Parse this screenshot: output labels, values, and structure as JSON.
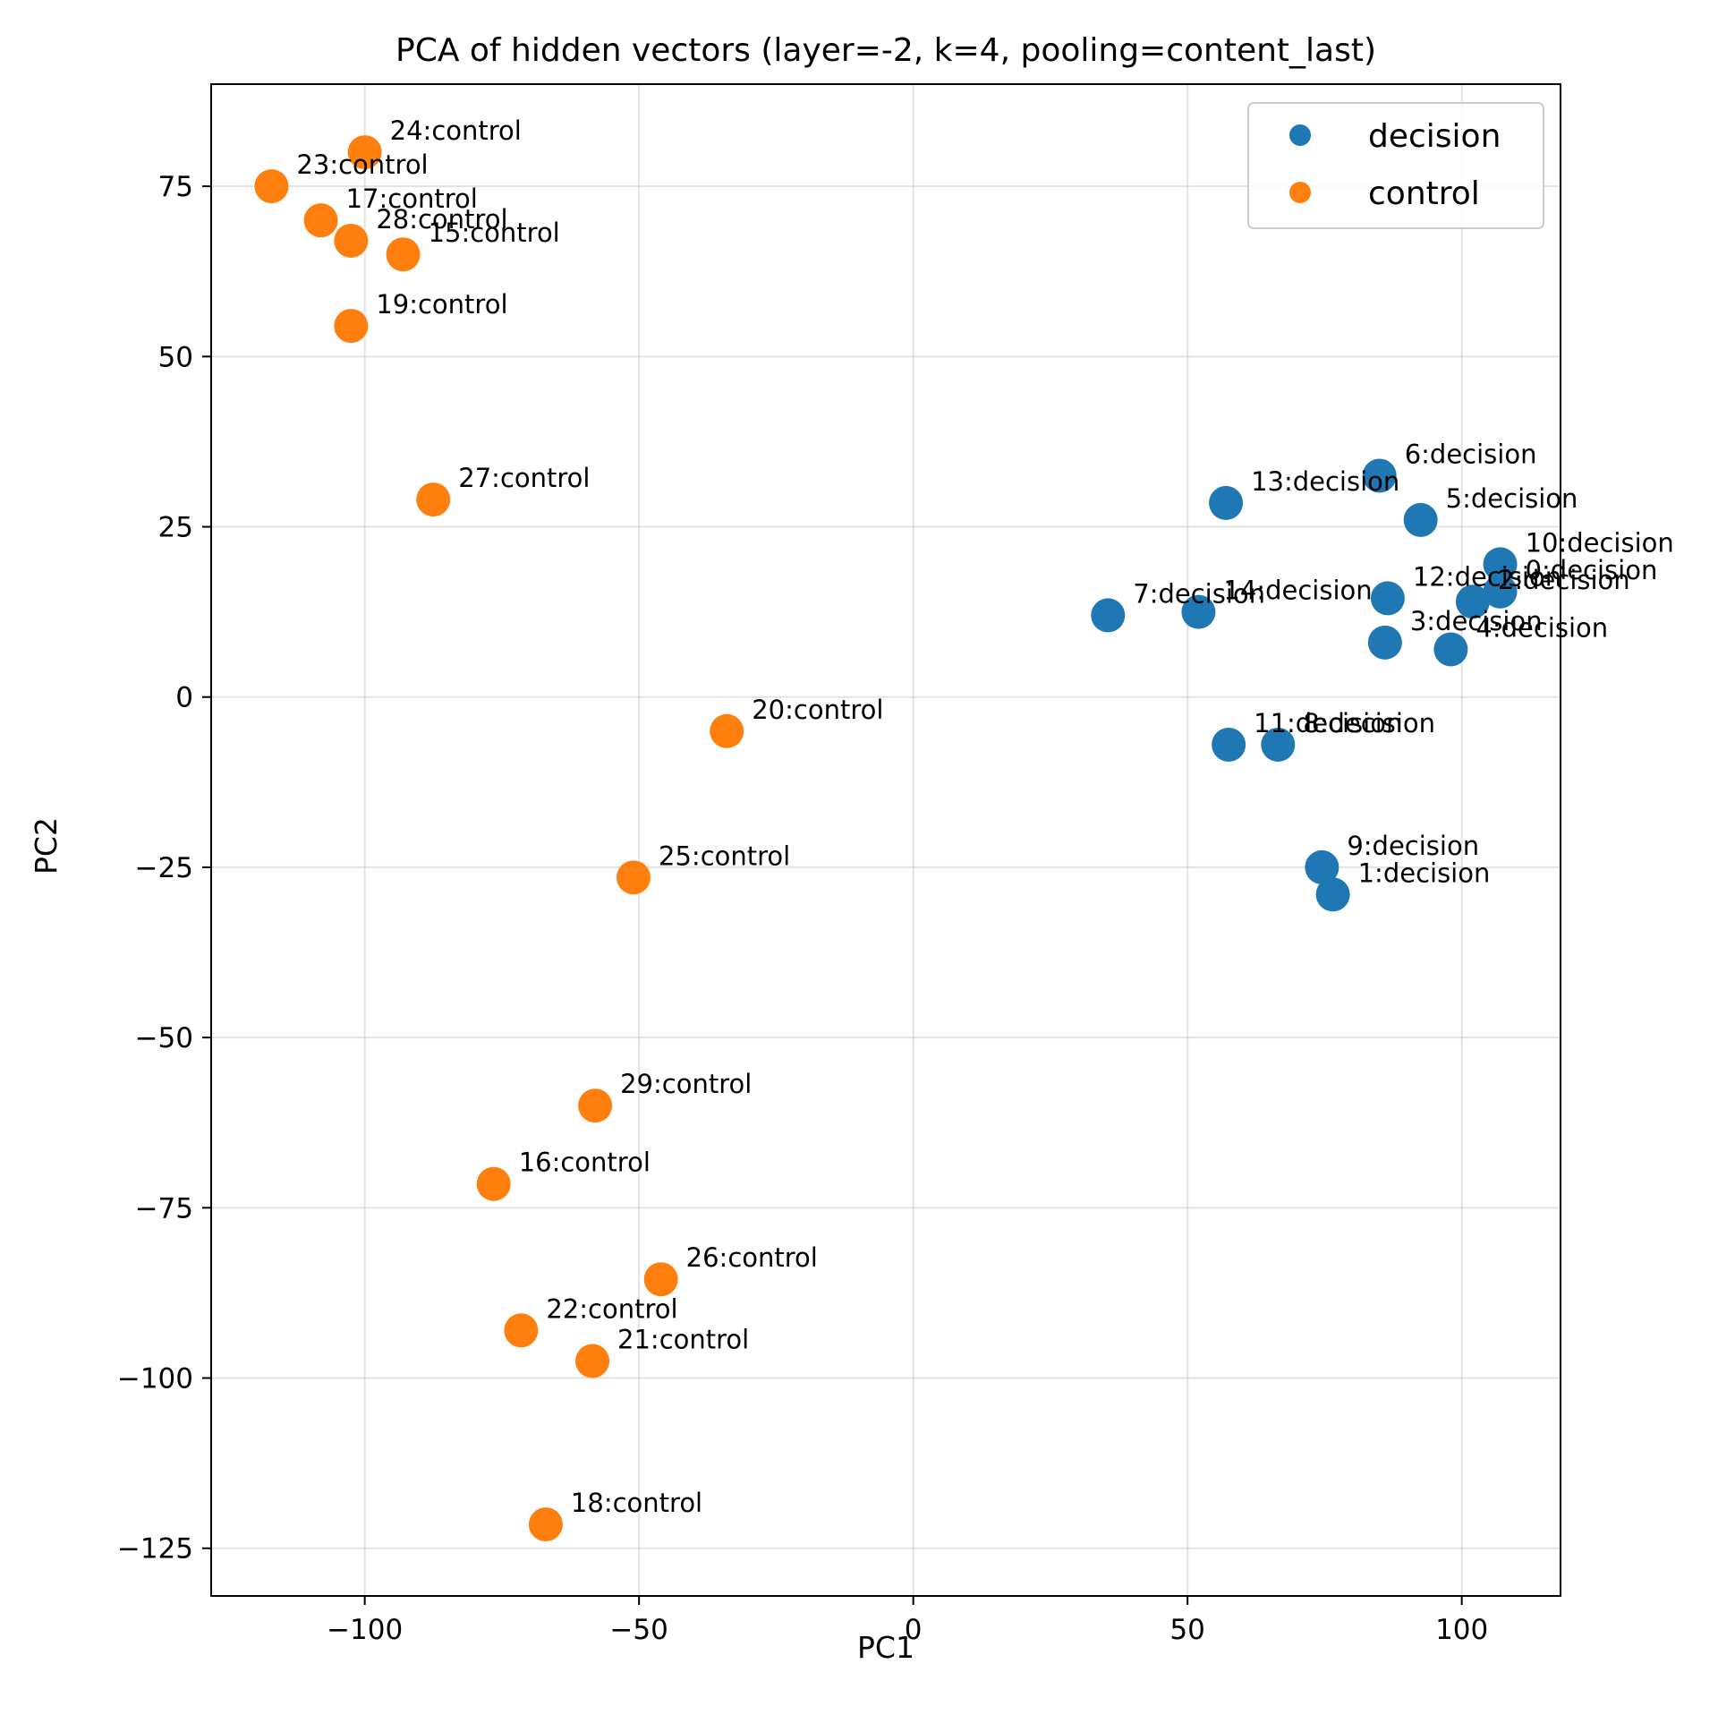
{
  "chart_data": {
    "type": "scatter",
    "title": "PCA of hidden vectors (layer=-2, k=4, pooling=content_last)",
    "xlabel": "PC1",
    "ylabel": "PC2",
    "xlim": [
      -128,
      118
    ],
    "ylim": [
      -132,
      90
    ],
    "xticks": [
      -100,
      -50,
      0,
      50,
      100
    ],
    "xtick_labels": [
      "−100",
      "−50",
      "0",
      "50",
      "100"
    ],
    "yticks": [
      75,
      50,
      25,
      0,
      -25,
      -50,
      -75,
      -100,
      -125
    ],
    "ytick_labels": [
      "75",
      "50",
      "25",
      "0",
      "−25",
      "−50",
      "−75",
      "−100",
      "−125"
    ],
    "grid": true,
    "legend_position": "top-right",
    "colors": {
      "decision": "#1f77b4",
      "control": "#ff7f0e"
    },
    "series": [
      {
        "name": "decision",
        "points": [
          {
            "x": 107,
            "y": 15.5,
            "label": "0:decision"
          },
          {
            "x": 76.5,
            "y": -29,
            "label": "1:decision"
          },
          {
            "x": 102,
            "y": 14,
            "label": "2:decision"
          },
          {
            "x": 86,
            "y": 8,
            "label": "3:decision"
          },
          {
            "x": 98,
            "y": 7,
            "label": "4:decision"
          },
          {
            "x": 92.5,
            "y": 26,
            "label": "5:decision"
          },
          {
            "x": 85,
            "y": 32.5,
            "label": "6:decision"
          },
          {
            "x": 35.5,
            "y": 12,
            "label": "7:decision"
          },
          {
            "x": 66.5,
            "y": -7,
            "label": "8:decision"
          },
          {
            "x": 74.5,
            "y": -25,
            "label": "9:decision"
          },
          {
            "x": 107,
            "y": 19.5,
            "label": "10:decision"
          },
          {
            "x": 57.5,
            "y": -7,
            "label": "11:decision"
          },
          {
            "x": 86.5,
            "y": 14.5,
            "label": "12:decision"
          },
          {
            "x": 57,
            "y": 28.5,
            "label": "13:decision"
          },
          {
            "x": 52,
            "y": 12.5,
            "label": "14:decision"
          }
        ]
      },
      {
        "name": "control",
        "points": [
          {
            "x": -93,
            "y": 65,
            "label": "15:control"
          },
          {
            "x": -76.5,
            "y": -71.5,
            "label": "16:control"
          },
          {
            "x": -108,
            "y": 70,
            "label": "17:control"
          },
          {
            "x": -67,
            "y": -121.5,
            "label": "18:control"
          },
          {
            "x": -102.5,
            "y": 54.5,
            "label": "19:control"
          },
          {
            "x": -34,
            "y": -5,
            "label": "20:control"
          },
          {
            "x": -58.5,
            "y": -97.5,
            "label": "21:control"
          },
          {
            "x": -71.5,
            "y": -93,
            "label": "22:control"
          },
          {
            "x": -117,
            "y": 75,
            "label": "23:control"
          },
          {
            "x": -100,
            "y": 80,
            "label": "24:control"
          },
          {
            "x": -51,
            "y": -26.5,
            "label": "25:control"
          },
          {
            "x": -46,
            "y": -85.5,
            "label": "26:control"
          },
          {
            "x": -87.5,
            "y": 29,
            "label": "27:control"
          },
          {
            "x": -102.5,
            "y": 67,
            "label": "28:control"
          },
          {
            "x": -58,
            "y": -60,
            "label": "29:control"
          }
        ]
      }
    ]
  }
}
